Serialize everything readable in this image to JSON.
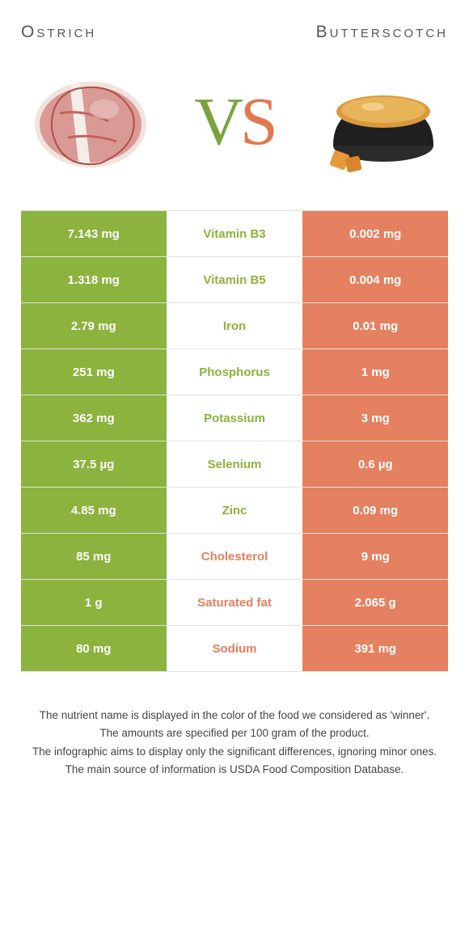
{
  "header": {
    "left_title": "Ostrich",
    "right_title": "Butterscotch",
    "vs_v": "V",
    "vs_s": "S"
  },
  "colors": {
    "green": "#8bb33d",
    "orange": "#e58060"
  },
  "rows": [
    {
      "left": "7.143 mg",
      "label": "Vitamin B3",
      "right": "0.002 mg",
      "winner": "left"
    },
    {
      "left": "1.318 mg",
      "label": "Vitamin B5",
      "right": "0.004 mg",
      "winner": "left"
    },
    {
      "left": "2.79 mg",
      "label": "Iron",
      "right": "0.01 mg",
      "winner": "left"
    },
    {
      "left": "251 mg",
      "label": "Phosphorus",
      "right": "1 mg",
      "winner": "left"
    },
    {
      "left": "362 mg",
      "label": "Potassium",
      "right": "3 mg",
      "winner": "left"
    },
    {
      "left": "37.5 µg",
      "label": "Selenium",
      "right": "0.6 µg",
      "winner": "left"
    },
    {
      "left": "4.85 mg",
      "label": "Zinc",
      "right": "0.09 mg",
      "winner": "left"
    },
    {
      "left": "85 mg",
      "label": "Cholesterol",
      "right": "9 mg",
      "winner": "right"
    },
    {
      "left": "1 g",
      "label": "Saturated fat",
      "right": "2.065 g",
      "winner": "right"
    },
    {
      "left": "80 mg",
      "label": "Sodium",
      "right": "391 mg",
      "winner": "right"
    }
  ],
  "footer": {
    "line1": "The nutrient name is displayed in the color of the food we considered as 'winner'.",
    "line2": "The amounts are specified per 100 gram of the product.",
    "line3": "The infographic aims to display only the significant differences, ignoring minor ones.",
    "line4": "The main source of information is USDA Food Composition Database."
  }
}
